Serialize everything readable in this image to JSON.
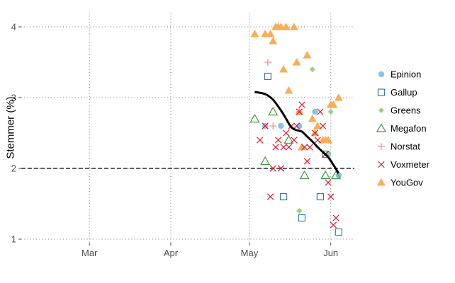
{
  "chart_data": {
    "type": "scatter",
    "title": "",
    "xlabel": "",
    "ylabel": "Stemmer (%)",
    "x_ticks": [
      {
        "date": "2019-03-01",
        "label": "Mar"
      },
      {
        "date": "2019-04-01",
        "label": "Apr"
      },
      {
        "date": "2019-05-01",
        "label": "May"
      },
      {
        "date": "2019-06-01",
        "label": "Jun"
      }
    ],
    "xlim": [
      "2019-02-03",
      "2019-06-10"
    ],
    "ylim": [
      0.95,
      4.2
    ],
    "y_ticks": [
      1,
      2,
      3,
      4
    ],
    "grid": "dotted",
    "legend_position": "right",
    "reference_line": {
      "y": 2,
      "style": "dashed"
    },
    "series": [
      {
        "name": "Epinion",
        "marker": "circle",
        "color": "#8ec1e3",
        "points": [
          [
            "2019-05-07",
            2.6
          ],
          [
            "2019-05-13",
            2.6
          ],
          [
            "2019-05-20",
            2.6
          ],
          [
            "2019-05-26",
            2.8
          ],
          [
            "2019-05-31",
            2.2
          ],
          [
            "2019-06-04",
            1.9
          ]
        ]
      },
      {
        "name": "Gallup",
        "marker": "square",
        "color": "#3a78b5",
        "points": [
          [
            "2019-05-08",
            3.3
          ],
          [
            "2019-05-14",
            1.6
          ],
          [
            "2019-05-21",
            1.3
          ],
          [
            "2019-05-28",
            1.6
          ],
          [
            "2019-05-30",
            2.2
          ],
          [
            "2019-06-04",
            1.1
          ]
        ]
      },
      {
        "name": "Greens",
        "marker": "diamond",
        "color": "#97d17a",
        "points": [
          [
            "2019-05-20",
            1.4
          ],
          [
            "2019-05-25",
            3.4
          ],
          [
            "2019-05-31",
            2.2
          ],
          [
            "2019-06-01",
            2.8
          ]
        ]
      },
      {
        "name": "Megafon",
        "marker": "triangle-open",
        "color": "#3f9a40",
        "points": [
          [
            "2019-05-03",
            2.7
          ],
          [
            "2019-05-07",
            2.1
          ],
          [
            "2019-05-10",
            2.8
          ],
          [
            "2019-05-16",
            2.4
          ],
          [
            "2019-05-22",
            1.9
          ],
          [
            "2019-05-30",
            1.9
          ],
          [
            "2019-06-03",
            1.9
          ]
        ]
      },
      {
        "name": "Norstat",
        "marker": "plus",
        "color": "#f28a98",
        "points": [
          [
            "2019-05-08",
            3.5
          ],
          [
            "2019-05-10",
            2.6
          ],
          [
            "2019-05-20",
            2.8
          ]
        ]
      },
      {
        "name": "Voxmeter",
        "marker": "cross",
        "color": "#e31a2c",
        "points": [
          [
            "2019-05-05",
            2.4
          ],
          [
            "2019-05-07",
            2.6
          ],
          [
            "2019-05-09",
            1.6
          ],
          [
            "2019-05-10",
            2.0
          ],
          [
            "2019-05-11",
            2.3
          ],
          [
            "2019-05-12",
            2.4
          ],
          [
            "2019-05-13",
            2.0
          ],
          [
            "2019-05-14",
            2.3
          ],
          [
            "2019-05-15",
            2.5
          ],
          [
            "2019-05-16",
            2.3
          ],
          [
            "2019-05-17",
            2.6
          ],
          [
            "2019-05-18",
            2.4
          ],
          [
            "2019-05-19",
            2.6
          ],
          [
            "2019-05-20",
            2.8
          ],
          [
            "2019-05-21",
            2.9
          ],
          [
            "2019-05-22",
            2.3
          ],
          [
            "2019-05-23",
            2.1
          ],
          [
            "2019-05-24",
            2.3
          ],
          [
            "2019-05-26",
            2.5
          ],
          [
            "2019-05-27",
            2.4
          ],
          [
            "2019-05-28",
            2.8
          ],
          [
            "2019-05-29",
            2.6
          ],
          [
            "2019-05-30",
            2.2
          ],
          [
            "2019-05-31",
            1.8
          ],
          [
            "2019-06-01",
            1.6
          ],
          [
            "2019-06-02",
            1.2
          ],
          [
            "2019-06-03",
            1.3
          ]
        ]
      },
      {
        "name": "YouGov",
        "marker": "triangle-filled",
        "color": "#f9ad58",
        "points": [
          [
            "2019-05-03",
            3.9
          ],
          [
            "2019-05-07",
            3.9
          ],
          [
            "2019-05-09",
            3.9
          ],
          [
            "2019-05-10",
            3.8
          ],
          [
            "2019-05-11",
            4.0
          ],
          [
            "2019-05-12",
            4.0
          ],
          [
            "2019-05-13",
            4.0
          ],
          [
            "2019-05-14",
            3.4
          ],
          [
            "2019-05-15",
            4.0
          ],
          [
            "2019-05-16",
            3.1
          ],
          [
            "2019-05-18",
            4.0
          ],
          [
            "2019-05-19",
            3.5
          ],
          [
            "2019-05-20",
            2.8
          ],
          [
            "2019-05-21",
            2.3
          ],
          [
            "2019-05-23",
            3.6
          ],
          [
            "2019-05-25",
            2.7
          ],
          [
            "2019-05-26",
            2.5
          ],
          [
            "2019-05-27",
            2.6
          ],
          [
            "2019-05-29",
            2.4
          ],
          [
            "2019-05-30",
            2.4
          ],
          [
            "2019-05-31",
            2.4
          ],
          [
            "2019-06-01",
            2.9
          ],
          [
            "2019-06-02",
            2.9
          ],
          [
            "2019-06-04",
            3.0
          ]
        ]
      }
    ],
    "trend_line": [
      [
        "2019-05-03",
        3.08
      ],
      [
        "2019-05-07",
        3.05
      ],
      [
        "2019-05-10",
        2.97
      ],
      [
        "2019-05-13",
        2.82
      ],
      [
        "2019-05-15",
        2.7
      ],
      [
        "2019-05-17",
        2.58
      ],
      [
        "2019-05-19",
        2.54
      ],
      [
        "2019-05-21",
        2.52
      ],
      [
        "2019-05-23",
        2.45
      ],
      [
        "2019-05-25",
        2.38
      ],
      [
        "2019-05-27",
        2.3
      ],
      [
        "2019-05-29",
        2.23
      ],
      [
        "2019-05-31",
        2.16
      ],
      [
        "2019-06-02",
        2.05
      ],
      [
        "2019-06-04",
        1.93
      ]
    ]
  }
}
